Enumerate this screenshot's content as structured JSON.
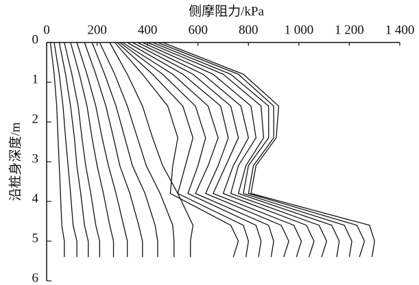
{
  "chart_data": {
    "type": "line",
    "title": "侧摩阻力/kPa",
    "y_label": "沿桩身深度/m",
    "x": [
      0,
      0.8,
      1.6,
      2.4,
      3.1,
      3.8,
      4.6,
      5.0,
      5.4
    ],
    "ylim": [
      0,
      1400
    ],
    "yticks": [
      0,
      200,
      400,
      600,
      800,
      {
        "value": 1000,
        "label": "1 000"
      },
      {
        "value": 1200,
        "label": "1 200"
      },
      {
        "value": 1400,
        "label": "1 400"
      }
    ],
    "xlim": [
      0,
      6
    ],
    "xticks": [
      0,
      1,
      2,
      3,
      4,
      5,
      6
    ],
    "color": "#111111",
    "series": [
      {
        "values": [
          15,
          30,
          40,
          45,
          50,
          55,
          60,
          70,
          70
        ]
      },
      {
        "values": [
          30,
          50,
          65,
          75,
          85,
          95,
          105,
          120,
          120
        ]
      },
      {
        "values": [
          50,
          75,
          95,
          110,
          120,
          135,
          150,
          165,
          165
        ]
      },
      {
        "values": [
          70,
          100,
          125,
          140,
          155,
          175,
          195,
          210,
          210
        ]
      },
      {
        "values": [
          95,
          130,
          160,
          180,
          200,
          225,
          250,
          265,
          265
        ]
      },
      {
        "values": [
          120,
          160,
          195,
          220,
          245,
          275,
          305,
          320,
          320
        ]
      },
      {
        "values": [
          150,
          195,
          235,
          265,
          290,
          330,
          365,
          380,
          380
        ]
      },
      {
        "values": [
          180,
          230,
          275,
          310,
          340,
          390,
          430,
          440,
          440
        ]
      },
      {
        "values": [
          210,
          270,
          320,
          360,
          395,
          450,
          500,
          505,
          505
        ]
      },
      {
        "values": [
          250,
          320,
          380,
          420,
          460,
          520,
          580,
          570,
          570
        ]
      },
      {
        "values": [
          270,
          380,
          480,
          520,
          500,
          490,
          730,
          760,
          740
        ]
      },
      {
        "values": [
          280,
          420,
          540,
          580,
          550,
          520,
          780,
          800,
          790
        ]
      },
      {
        "values": [
          290,
          460,
          590,
          630,
          600,
          560,
          830,
          850,
          840
        ]
      },
      {
        "values": [
          300,
          500,
          640,
          680,
          640,
          590,
          880,
          900,
          890
        ]
      },
      {
        "values": [
          320,
          540,
          690,
          720,
          680,
          630,
          930,
          960,
          940
        ]
      },
      {
        "values": [
          340,
          580,
          730,
          760,
          710,
          660,
          980,
          1010,
          990
        ]
      },
      {
        "values": [
          360,
          620,
          770,
          800,
          740,
          700,
          1030,
          1060,
          1040
        ]
      },
      {
        "values": [
          380,
          660,
          810,
          830,
          760,
          730,
          1080,
          1110,
          1090
        ]
      },
      {
        "values": [
          400,
          700,
          850,
          860,
          790,
          760,
          1130,
          1160,
          1150
        ]
      },
      {
        "values": [
          420,
          730,
          880,
          880,
          800,
          780,
          1180,
          1210,
          1200
        ]
      },
      {
        "values": [
          440,
          760,
          900,
          900,
          820,
          800,
          1230,
          1260,
          1240
        ]
      },
      {
        "values": [
          460,
          780,
          920,
          910,
          830,
          810,
          1280,
          1300,
          1290
        ]
      }
    ]
  }
}
